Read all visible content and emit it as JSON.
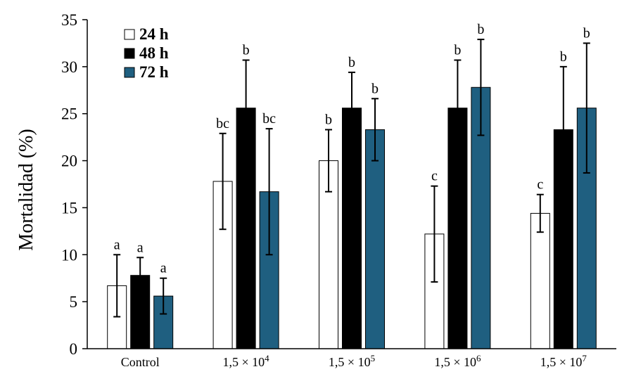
{
  "chart_data": {
    "type": "bar",
    "title": "",
    "xlabel": "",
    "ylabel": "Mortalidad (%)",
    "ylim": [
      0,
      35
    ],
    "yticks": [
      0,
      5,
      10,
      15,
      20,
      25,
      30,
      35
    ],
    "grid": false,
    "legend_position": "top-left",
    "categories": [
      {
        "label": "Control"
      },
      {
        "label": "1,5 × 10",
        "exp": "4"
      },
      {
        "label": "1,5 × 10",
        "exp": "5"
      },
      {
        "label": "1,5 × 10",
        "exp": "6"
      },
      {
        "label": "1,5 × 10",
        "exp": "7"
      }
    ],
    "series": [
      {
        "name": "24 h",
        "color": "#ffffff",
        "values": [
          6.7,
          17.8,
          20.0,
          12.2,
          14.4
        ],
        "errors": [
          3.3,
          5.1,
          3.3,
          5.1,
          2.0
        ],
        "labels": [
          "a",
          "bc",
          "b",
          "c",
          "c"
        ]
      },
      {
        "name": "48 h",
        "color": "#000000",
        "values": [
          7.8,
          25.6,
          25.6,
          25.6,
          23.3
        ],
        "errors": [
          1.9,
          5.1,
          3.8,
          5.1,
          6.7
        ],
        "labels": [
          "a",
          "b",
          "b",
          "b",
          "b"
        ]
      },
      {
        "name": "72 h",
        "color": "#1f5f80",
        "values": [
          5.6,
          16.7,
          23.3,
          27.8,
          25.6
        ],
        "errors": [
          1.9,
          6.7,
          3.3,
          5.1,
          6.9
        ],
        "labels": [
          "a",
          "bc",
          "b",
          "b",
          "b"
        ]
      }
    ]
  }
}
